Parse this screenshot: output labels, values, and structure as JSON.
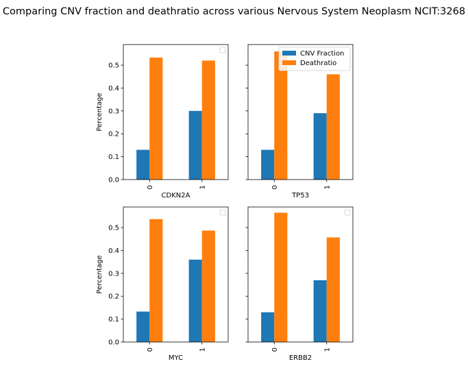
{
  "figure": {
    "title": "Comparing CNV fraction and deathratio across various Nervous System Neoplasm NCIT:3268"
  },
  "legend": {
    "entries": [
      {
        "label": "CNV Fraction",
        "color": "#1f77b4"
      },
      {
        "label": "Deathratio",
        "color": "#ff7f0e"
      }
    ],
    "placement": "upper right of top-right panel"
  },
  "chart_data": [
    {
      "type": "bar",
      "panel": "top-left",
      "categories": [
        "0",
        "1"
      ],
      "xlabel": "CDKN2A",
      "ylabel": "Percentage",
      "ylim": [
        0,
        0.59
      ],
      "yticks": [
        "0.0",
        "0.1",
        "0.2",
        "0.3",
        "0.4",
        "0.5"
      ],
      "series": [
        {
          "name": "CNV Fraction",
          "values": [
            0.13,
            0.3
          ]
        },
        {
          "name": "Deathratio",
          "values": [
            0.533,
            0.52
          ]
        }
      ],
      "legend": "empty box top-right"
    },
    {
      "type": "bar",
      "panel": "top-right",
      "categories": [
        "0",
        "1"
      ],
      "xlabel": "TP53",
      "ylabel": "",
      "ylim": [
        0,
        0.59
      ],
      "series": [
        {
          "name": "CNV Fraction",
          "values": [
            0.13,
            0.29
          ]
        },
        {
          "name": "Deathratio",
          "values": [
            0.56,
            0.46
          ]
        }
      ],
      "legend": "top-right"
    },
    {
      "type": "bar",
      "panel": "bottom-left",
      "categories": [
        "0",
        "1"
      ],
      "xlabel": "MYC",
      "ylabel": "Percentage",
      "ylim": [
        0,
        0.59
      ],
      "yticks": [
        "0.0",
        "0.1",
        "0.2",
        "0.3",
        "0.4",
        "0.5"
      ],
      "series": [
        {
          "name": "CNV Fraction",
          "values": [
            0.133,
            0.36
          ]
        },
        {
          "name": "Deathratio",
          "values": [
            0.537,
            0.487
          ]
        }
      ],
      "legend": "empty box top-right"
    },
    {
      "type": "bar",
      "panel": "bottom-right",
      "categories": [
        "0",
        "1"
      ],
      "xlabel": "ERBB2",
      "ylabel": "",
      "ylim": [
        0,
        0.59
      ],
      "series": [
        {
          "name": "CNV Fraction",
          "values": [
            0.13,
            0.27
          ]
        },
        {
          "name": "Deathratio",
          "values": [
            0.565,
            0.457
          ]
        }
      ],
      "legend": "empty box top-right"
    }
  ]
}
